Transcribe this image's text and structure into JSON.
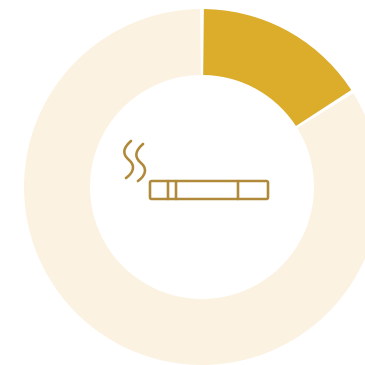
{
  "chart_data": {
    "type": "pie",
    "variant": "donut",
    "title": "",
    "legend": "none",
    "slices": [
      {
        "value": 16,
        "color": "#DBAD2B"
      },
      {
        "value": 84,
        "color": "#FBF2E2"
      }
    ],
    "center_icon": {
      "name": "cigarette-icon",
      "color": "#B08A3A"
    }
  }
}
